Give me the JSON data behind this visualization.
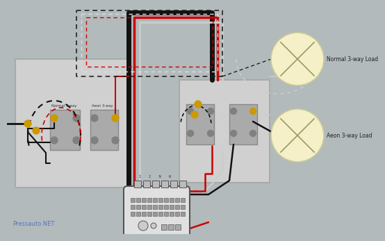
{
  "bg_color": "#b2babb",
  "watermark": "Pressauto.NET",
  "load_circle_color": "#f5f0c8",
  "load_circle_edge": "#cccc99",
  "switch_rect_color": "#aaaaaa",
  "term_gray": "#808080",
  "term_yellow": "#cc9900",
  "wire_black": "#111111",
  "wire_red": "#cc0000",
  "wire_white": "#cccccc",
  "wire_gray": "#555555",
  "module_color": "#e0e0e0",
  "module_edge": "#555555",
  "box1_color": "#d0d0d0",
  "box2_color": "#d0d0d0",
  "normal_load_label": "Normal 3-way Load",
  "aeon_load_label": "Aeon 3-way Load",
  "switch1_label": "Normal 3-way",
  "switch2_label": "Aeon 3-way"
}
